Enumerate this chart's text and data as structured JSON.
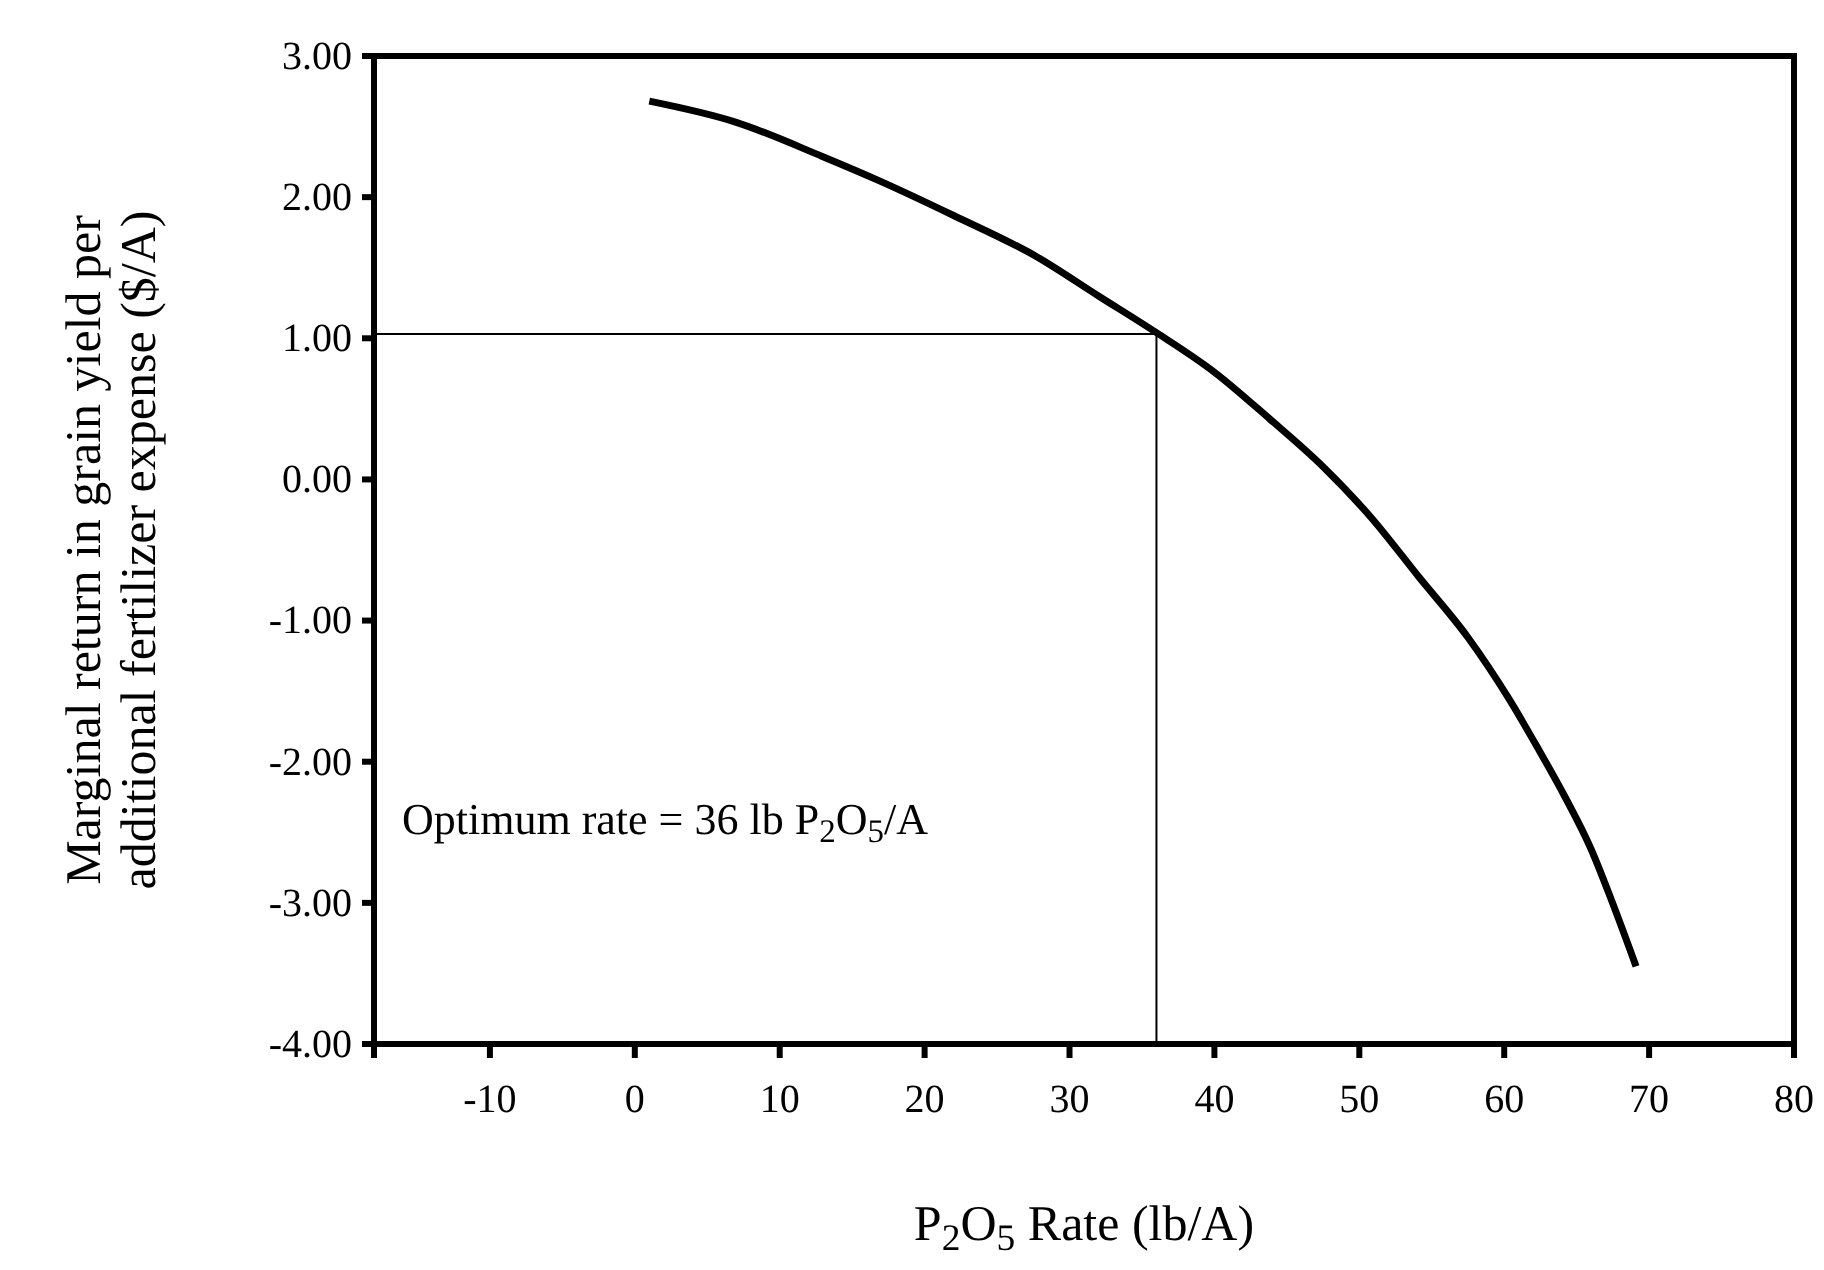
{
  "chart_data": {
    "type": "line",
    "xlabel": "P$_{2}$O$_{5}$ Rate (lb/A)",
    "ylabel": "Marginal return in grain yield per additional fertilizer expense ($/A)",
    "series": [
      {
        "color": "#000000",
        "x": [
          1,
          7,
          12.9,
          17,
          22,
          27.7,
          32,
          36,
          40,
          43.8,
          47.5,
          50.9,
          54.1,
          57.5,
          60.3,
          62.3,
          64.2,
          66,
          67.4,
          69.1
        ],
        "values": [
          2.68,
          2.53,
          2.29,
          2.11,
          1.87,
          1.58,
          1.3,
          1.04,
          0.76,
          0.43,
          0.09,
          -0.28,
          -0.69,
          -1.12,
          -1.55,
          -1.9,
          -2.25,
          -2.62,
          -2.98,
          -3.45
        ]
      }
    ],
    "xlim": [
      -18,
      80
    ],
    "xticks": [
      -10,
      0,
      10,
      20,
      30,
      40,
      50,
      60,
      70,
      80
    ],
    "ylim": [
      -4,
      3
    ],
    "yticks": [
      {
        "value": 3,
        "label": "3.00"
      },
      {
        "value": 2,
        "label": "2.00"
      },
      {
        "value": 1,
        "label": "1.00"
      },
      {
        "value": 0,
        "label": "0.00"
      },
      {
        "value": -1,
        "label": "-1.00"
      },
      {
        "value": -2,
        "label": "-2.00"
      },
      {
        "value": -3,
        "label": "-3.00"
      },
      {
        "value": -4,
        "label": "-4.00"
      }
    ],
    "ref_lines": [
      {
        "axis": "y",
        "value": 1.03,
        "color": "#000000"
      },
      {
        "axis": "x",
        "value": 36,
        "color": "#000000"
      }
    ],
    "annotations": [
      "Optimum rate = 36 lb P$_{2}$O$_{5}$/A"
    ],
    "grid": false,
    "marker": "none",
    "line_style": "solid"
  }
}
